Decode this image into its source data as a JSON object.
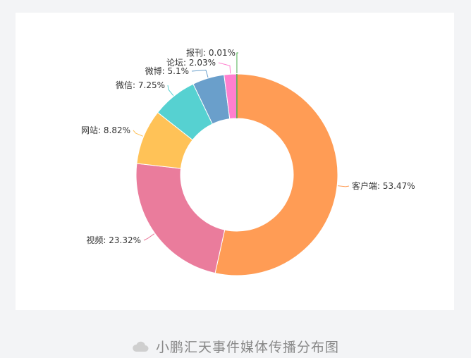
{
  "chart_data": {
    "type": "pie",
    "donut": true,
    "categories": [
      "客户端",
      "视频",
      "网站",
      "微信",
      "微博",
      "论坛",
      "报刊"
    ],
    "values": [
      53.47,
      23.32,
      8.82,
      7.25,
      5.1,
      2.03,
      0.01
    ],
    "labels": [
      "客户端: 53.47%",
      "视频: 23.32%",
      "网站: 8.82%",
      "微信: 7.25%",
      "微博: 5.1%",
      "论坛: 2.03%",
      "报刊: 0.01%"
    ],
    "colors": [
      "#ff9c55",
      "#ea7c9c",
      "#ffc257",
      "#56d1d1",
      "#6a9fcb",
      "#ff7fcf",
      "#4caf50"
    ],
    "start_angle_deg": 0,
    "direction": "clockwise",
    "unit": "%"
  },
  "caption": {
    "icon": "cloud-icon",
    "text": "小鹏汇天事件媒体传播分布图"
  }
}
